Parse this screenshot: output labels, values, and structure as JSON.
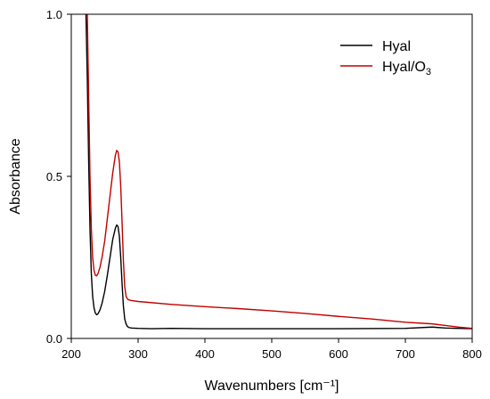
{
  "chart_data": {
    "type": "line",
    "title": "",
    "xlabel": "Wavenumbers [cm⁻¹]",
    "ylabel": "Absorbance",
    "xlim": [
      200,
      800
    ],
    "ylim": [
      0,
      1
    ],
    "x_ticks": [
      200,
      300,
      400,
      500,
      600,
      700,
      800
    ],
    "x_tick_labels": [
      "200",
      "300",
      "400",
      "500",
      "600",
      "700",
      "800"
    ],
    "y_ticks": [
      0,
      0.5,
      1
    ],
    "y_tick_labels": [
      "0.0",
      "0.5",
      "1.0"
    ],
    "grid": false,
    "legend_position": "top-right",
    "legend": [
      {
        "text": "Hyal",
        "sub": ""
      },
      {
        "text": "Hyal/O",
        "sub": "3"
      }
    ],
    "series": [
      {
        "name": "Hyal",
        "color": "#000000",
        "x": [
          222,
          224,
          226,
          228,
          230,
          232,
          234,
          236,
          238,
          240,
          243,
          246,
          250,
          254,
          258,
          262,
          266,
          268,
          270,
          272,
          274,
          276,
          278,
          280,
          282,
          284,
          286,
          290,
          300,
          320,
          350,
          400,
          500,
          600,
          700,
          740,
          760,
          800
        ],
        "y": [
          1.0,
          0.8,
          0.55,
          0.34,
          0.2,
          0.13,
          0.095,
          0.078,
          0.073,
          0.076,
          0.088,
          0.108,
          0.145,
          0.195,
          0.25,
          0.305,
          0.34,
          0.35,
          0.345,
          0.315,
          0.25,
          0.17,
          0.1,
          0.06,
          0.045,
          0.037,
          0.034,
          0.032,
          0.031,
          0.03,
          0.031,
          0.03,
          0.03,
          0.03,
          0.031,
          0.035,
          0.032,
          0.03
        ]
      },
      {
        "name": "Hyal/O3",
        "color": "#c00000",
        "x": [
          224,
          226,
          228,
          230,
          232,
          234,
          236,
          238,
          240,
          243,
          246,
          250,
          254,
          258,
          262,
          266,
          268,
          270,
          272,
          274,
          276,
          278,
          280,
          282,
          284,
          286,
          290,
          300,
          350,
          400,
          450,
          500,
          550,
          600,
          650,
          700,
          740,
          760,
          780,
          800
        ],
        "y": [
          1.0,
          0.75,
          0.5,
          0.34,
          0.25,
          0.21,
          0.195,
          0.193,
          0.2,
          0.22,
          0.25,
          0.3,
          0.37,
          0.44,
          0.51,
          0.565,
          0.58,
          0.575,
          0.545,
          0.47,
          0.36,
          0.24,
          0.16,
          0.13,
          0.122,
          0.119,
          0.117,
          0.114,
          0.105,
          0.098,
          0.092,
          0.085,
          0.077,
          0.068,
          0.06,
          0.05,
          0.045,
          0.04,
          0.035,
          0.031
        ]
      }
    ]
  }
}
